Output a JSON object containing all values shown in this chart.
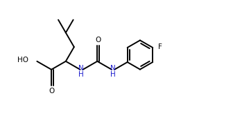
{
  "bg_color": "#ffffff",
  "line_color": "#000000",
  "text_color": "#000000",
  "blue_color": "#1a1acd",
  "figsize": [
    3.36,
    1.71
  ],
  "dpi": 100,
  "lw": 1.4,
  "fs": 7.5,
  "xlim": [
    0,
    10
  ],
  "ylim": [
    0,
    5.1
  ]
}
